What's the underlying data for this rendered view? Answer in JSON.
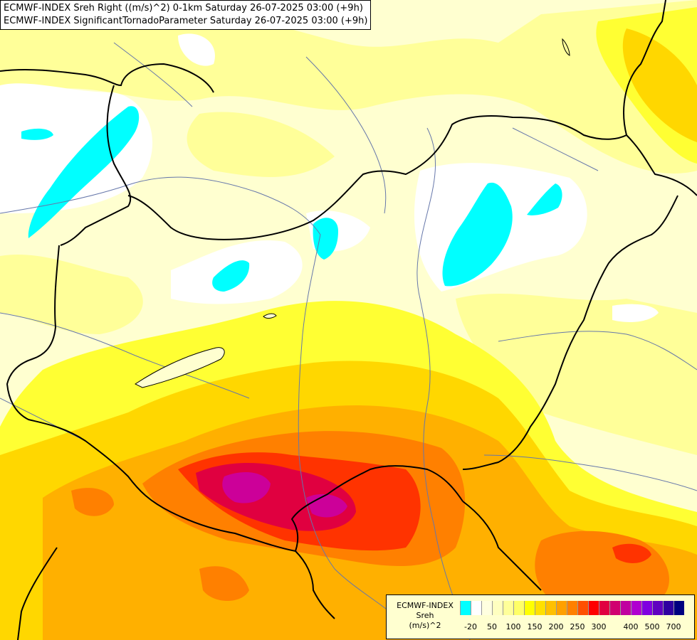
{
  "header": {
    "line1": "ECMWF-INDEX Sreh Right ((m/s)^2) 0-1km Saturday 26-07-2025 03:00 (+9h)",
    "line2": "ECMWF-INDEX SignificantTornadoParameter Saturday 26-07-2025 03:00 (+9h)"
  },
  "legend": {
    "title_lines": [
      "ECMWF-INDEX",
      "Sreh",
      "(m/s)^2"
    ],
    "colors": [
      "#00ffff",
      "#ffffff",
      "#ffffe0",
      "#ffffc0",
      "#ffff99",
      "#ffff66",
      "#ffff00",
      "#ffe000",
      "#ffc000",
      "#ffa000",
      "#ff8000",
      "#ff5000",
      "#ff0000",
      "#e00040",
      "#d00070",
      "#c000a0",
      "#b000d0",
      "#8000e0",
      "#6000c0",
      "#3000a0",
      "#000080"
    ],
    "ticks": [
      "-20",
      "50",
      "100",
      "150",
      "200",
      "250",
      "300",
      "400",
      "500",
      "700"
    ]
  },
  "palette": {
    "cyan": "#00ffff",
    "white": "#ffffff",
    "pale": "#ffffd0",
    "lightyellow": "#ffff99",
    "yellow": "#ffff33",
    "gold": "#ffd700",
    "orange": "#ffb000",
    "darkorange": "#ff8000",
    "red": "#ff3300",
    "crimson": "#e00040",
    "magenta": "#cc0099",
    "border": "#000000",
    "river": "#6677aa"
  }
}
